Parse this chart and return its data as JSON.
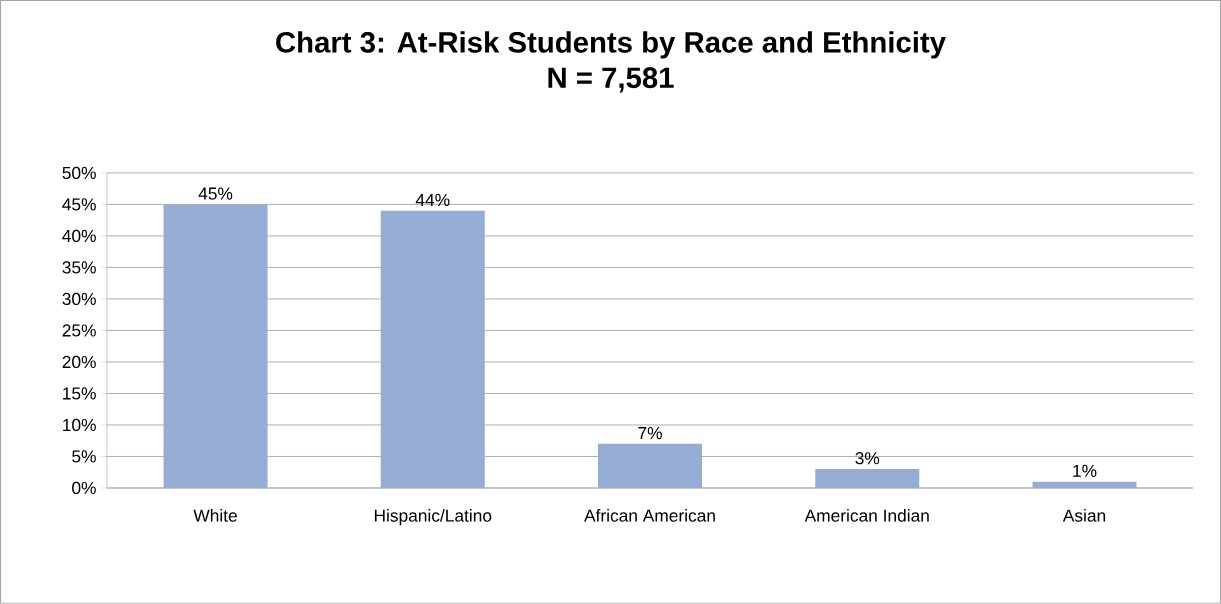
{
  "chart_data": {
    "type": "bar",
    "title": "Chart 3: At-Risk Students by Race and Ethnicity",
    "subtitle": "N = 7,581",
    "categories": [
      "White",
      "Hispanic/Latino",
      "African American",
      "American Indian",
      "Asian"
    ],
    "values": [
      45,
      44,
      7,
      3,
      1
    ],
    "value_labels": [
      "45%",
      "44%",
      "7%",
      "3%",
      "1%"
    ],
    "color": "#95acd4",
    "ylim": [
      0,
      50
    ],
    "yticks": [
      {
        "value": 0,
        "label": "0%"
      },
      {
        "value": 5,
        "label": "5%"
      },
      {
        "value": 10,
        "label": "10%"
      },
      {
        "value": 15,
        "label": "15%"
      },
      {
        "value": 20,
        "label": "20%"
      },
      {
        "value": 25,
        "label": "25%"
      },
      {
        "value": 30,
        "label": "30%"
      },
      {
        "value": 35,
        "label": "35%"
      },
      {
        "value": 40,
        "label": "40%"
      },
      {
        "value": 45,
        "label": "45%"
      },
      {
        "value": 50,
        "label": "50%"
      }
    ],
    "grid": "y"
  }
}
